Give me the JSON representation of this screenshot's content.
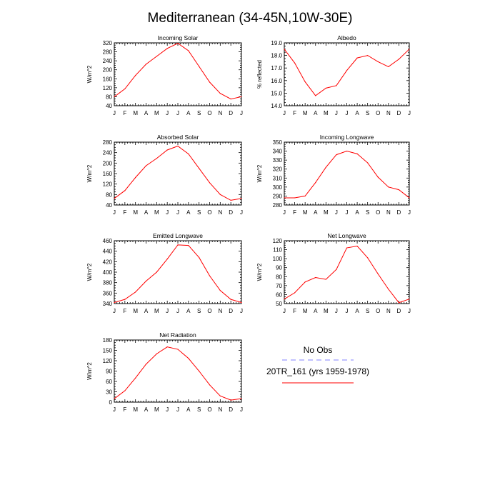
{
  "figure_title": "Mediterranean (34-45N,10W-30E)",
  "legend": {
    "items": [
      {
        "label": "No Obs",
        "color": "#8080ff",
        "dash": "dashed"
      },
      {
        "label": "20TR_161 (yrs 1959-1978)",
        "color": "#ff0000",
        "dash": "solid"
      }
    ]
  },
  "colors": {
    "model": "#ff0000",
    "obs": "#8080ff"
  },
  "chart_data": [
    {
      "type": "line",
      "title": "Incoming Solar",
      "xlabel": "",
      "ylabel": "W/m^2",
      "categories": [
        "J",
        "F",
        "M",
        "A",
        "M",
        "J",
        "J",
        "A",
        "S",
        "O",
        "N",
        "D",
        "J"
      ],
      "ylim": [
        40,
        320
      ],
      "yticks": [
        40,
        80,
        120,
        160,
        200,
        240,
        280,
        320
      ],
      "series": [
        {
          "values": [
            80,
            115,
            175,
            225,
            260,
            295,
            318,
            285,
            215,
            145,
            95,
            70,
            80
          ]
        }
      ]
    },
    {
      "type": "line",
      "title": "Albedo",
      "xlabel": "",
      "ylabel": "% reflected",
      "categories": [
        "J",
        "F",
        "M",
        "A",
        "M",
        "J",
        "J",
        "A",
        "S",
        "O",
        "N",
        "D",
        "J"
      ],
      "ylim": [
        14.0,
        19.0
      ],
      "yticks": [
        "14.0",
        "15.0",
        "16.0",
        "17.0",
        "18.0",
        "19.0"
      ],
      "series": [
        {
          "values": [
            18.5,
            17.4,
            15.9,
            14.8,
            15.4,
            15.6,
            16.8,
            17.8,
            18.0,
            17.5,
            17.1,
            17.7,
            18.5
          ]
        }
      ]
    },
    {
      "type": "line",
      "title": "Absorbed Solar",
      "xlabel": "",
      "ylabel": "W/m^2",
      "categories": [
        "J",
        "F",
        "M",
        "A",
        "M",
        "J",
        "J",
        "A",
        "S",
        "O",
        "N",
        "D",
        "J"
      ],
      "ylim": [
        40,
        280
      ],
      "yticks": [
        40,
        80,
        120,
        160,
        200,
        240,
        280
      ],
      "series": [
        {
          "values": [
            65,
            95,
            145,
            190,
            218,
            250,
            265,
            235,
            180,
            125,
            80,
            58,
            65
          ]
        }
      ]
    },
    {
      "type": "line",
      "title": "Incoming Longwave",
      "xlabel": "",
      "ylabel": "W/m^2",
      "categories": [
        "J",
        "F",
        "M",
        "A",
        "M",
        "J",
        "J",
        "A",
        "S",
        "O",
        "N",
        "D",
        "J"
      ],
      "ylim": [
        280,
        350
      ],
      "yticks": [
        280,
        290,
        300,
        310,
        320,
        330,
        340,
        350
      ],
      "series": [
        {
          "values": [
            288,
            288,
            290,
            305,
            322,
            336,
            340,
            337,
            327,
            311,
            300,
            297,
            288
          ]
        }
      ]
    },
    {
      "type": "line",
      "title": "Emitted Longwave",
      "xlabel": "",
      "ylabel": "W/m^2",
      "categories": [
        "J",
        "F",
        "M",
        "A",
        "M",
        "J",
        "J",
        "A",
        "S",
        "O",
        "N",
        "D",
        "J"
      ],
      "ylim": [
        340,
        460
      ],
      "yticks": [
        340,
        360,
        380,
        400,
        420,
        440,
        460
      ],
      "series": [
        {
          "values": [
            342,
            348,
            362,
            383,
            400,
            425,
            452,
            451,
            428,
            393,
            365,
            348,
            342
          ]
        }
      ]
    },
    {
      "type": "line",
      "title": "Net Longwave",
      "xlabel": "",
      "ylabel": "W/m^2",
      "categories": [
        "J",
        "F",
        "M",
        "A",
        "M",
        "J",
        "J",
        "A",
        "S",
        "O",
        "N",
        "D",
        "J"
      ],
      "ylim": [
        50,
        120
      ],
      "yticks": [
        50,
        60,
        70,
        80,
        90,
        100,
        110,
        120
      ],
      "series": [
        {
          "values": [
            55,
            62,
            74,
            79,
            77,
            88,
            112,
            114,
            101,
            83,
            66,
            51,
            55
          ]
        }
      ]
    },
    {
      "type": "line",
      "title": "Net Radiation",
      "xlabel": "",
      "ylabel": "W/m^2",
      "categories": [
        "J",
        "F",
        "M",
        "A",
        "M",
        "J",
        "J",
        "A",
        "S",
        "O",
        "N",
        "D",
        "J"
      ],
      "ylim": [
        0,
        180
      ],
      "yticks": [
        0,
        30,
        60,
        90,
        120,
        150,
        180
      ],
      "series": [
        {
          "values": [
            10,
            33,
            70,
            110,
            140,
            160,
            153,
            127,
            90,
            50,
            18,
            6,
            10
          ]
        }
      ]
    }
  ]
}
